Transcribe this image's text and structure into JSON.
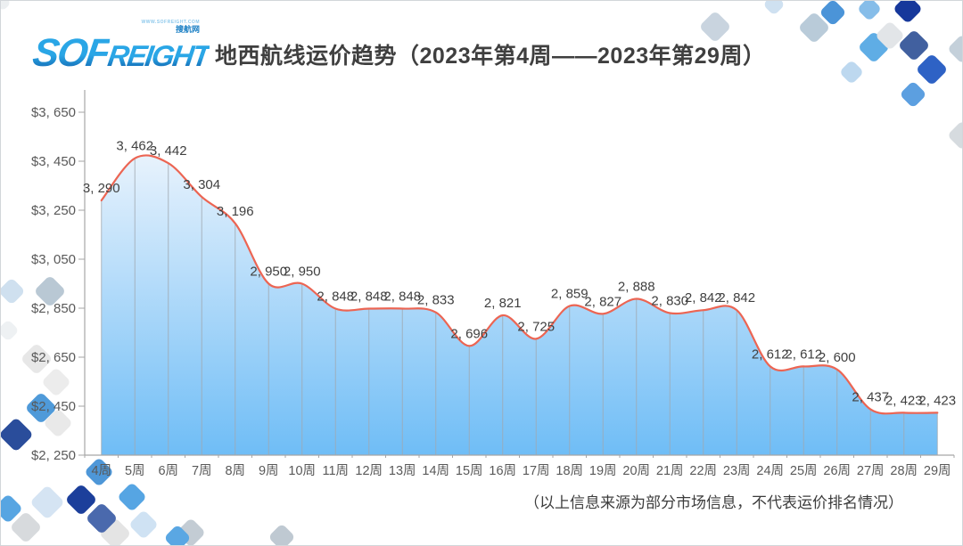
{
  "header": {
    "logo": {
      "text_main": "SOF",
      "text_rest": "REIGHT",
      "url": "WWW.SOFREIGHT.COM",
      "tagline": "搜航网"
    },
    "title": "地西航线运价趋势（2023年第4周——2023年第29周）"
  },
  "footer": {
    "note": "（以上信息来源为部分市场信息，不代表运价排名情况）"
  },
  "chart_data": {
    "type": "area",
    "title": "地西航线运价趋势（2023年第4周——2023年第29周）",
    "categories": [
      "4周",
      "5周",
      "6周",
      "7周",
      "8周",
      "9周",
      "10周",
      "11周",
      "12周",
      "13周",
      "14周",
      "15周",
      "16周",
      "17周",
      "18周",
      "19周",
      "20周",
      "21周",
      "22周",
      "23周",
      "24周",
      "25周",
      "26周",
      "27周",
      "28周",
      "29周"
    ],
    "series": [
      {
        "name": "地西航线运价",
        "values": [
          3290,
          3462,
          3442,
          3304,
          3196,
          2950,
          2950,
          2848,
          2848,
          2848,
          2833,
          2696,
          2821,
          2725,
          2859,
          2827,
          2888,
          2830,
          2842,
          2842,
          2612,
          2612,
          2600,
          2437,
          2423,
          2423
        ]
      }
    ],
    "data_labels": [
      "3, 290",
      "3, 462",
      "3, 442",
      "3, 304",
      "3, 196",
      "2, 950",
      "2, 950",
      "2, 848",
      "2, 848",
      "2, 848",
      "2, 833",
      "2, 696",
      "2, 821",
      "2, 725",
      "2, 859",
      "2, 827",
      "2, 888",
      "2, 830",
      "2, 842",
      "2, 842",
      "2, 612",
      "2, 612",
      "2, 600",
      "2, 437",
      "2, 423",
      "2, 423"
    ],
    "ylim": [
      2250,
      3650
    ],
    "ytick_step": 200,
    "yticks": [
      {
        "label": "$3, 650",
        "value": 3650
      },
      {
        "label": "$3, 450",
        "value": 3450
      },
      {
        "label": "$3, 250",
        "value": 3250
      },
      {
        "label": "$3, 050",
        "value": 3050
      },
      {
        "label": "$2, 850",
        "value": 2850
      },
      {
        "label": "$2, 650",
        "value": 2650
      },
      {
        "label": "$2, 450",
        "value": 2450
      },
      {
        "label": "$2, 250",
        "value": 2250
      }
    ],
    "grid": "vertical-drop-lines",
    "legend": "none",
    "line_color": "#ec6553",
    "area_gradient_top": "#f0f6fd",
    "area_gradient_bottom": "#6fbdf6",
    "axis_color": "#a6a6a6",
    "droplines_color": "#9fa8b0",
    "tick_label_color": "#595959",
    "data_label_color": "#404040"
  }
}
